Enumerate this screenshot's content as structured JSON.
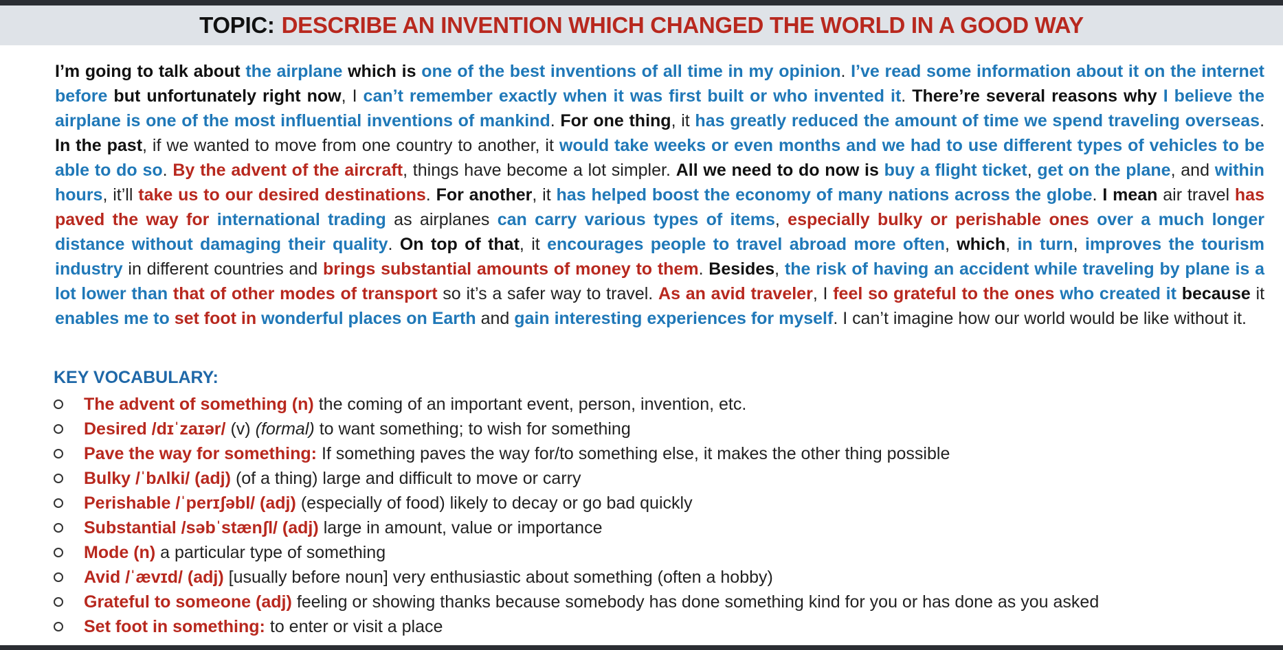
{
  "title": {
    "prefix": "TOPIC:",
    "text": "DESCRIBE AN INVENTION WHICH CHANGED THE WORLD IN A GOOD WAY"
  },
  "passage": [
    {
      "text": "I’m going to talk about ",
      "style": "b"
    },
    {
      "text": "the airplane",
      "style": "blue"
    },
    {
      "text": " which is ",
      "style": "b"
    },
    {
      "text": "one of the best inventions of all time in my opinion",
      "style": "blue"
    },
    {
      "text": ". ",
      "style": "n"
    },
    {
      "text": "I’ve read some information about it on the internet before",
      "style": "blue"
    },
    {
      "text": " but unfortunately right now",
      "style": "b"
    },
    {
      "text": ", I ",
      "style": "n"
    },
    {
      "text": "can’t remember exactly when it was first built or who invented it",
      "style": "blue"
    },
    {
      "text": ". ",
      "style": "n"
    },
    {
      "text": "There’re several reasons why",
      "style": "b"
    },
    {
      "text": " ",
      "style": "n"
    },
    {
      "text": "I believe the airplane is one of the most influential inventions of mankind",
      "style": "blue"
    },
    {
      "text": ". ",
      "style": "n"
    },
    {
      "text": "For one thing",
      "style": "b"
    },
    {
      "text": ", it ",
      "style": "n"
    },
    {
      "text": "has greatly reduced the amount of time we spend traveling overseas",
      "style": "blue"
    },
    {
      "text": ". ",
      "style": "n"
    },
    {
      "text": "In the past",
      "style": "b"
    },
    {
      "text": ", if we wanted to move from one country to another, it ",
      "style": "n"
    },
    {
      "text": "would take weeks or even months and we had to use different types of vehicles to be able to do so",
      "style": "blue"
    },
    {
      "text": ". ",
      "style": "n"
    },
    {
      "text": "By the advent of the aircraft",
      "style": "red"
    },
    {
      "text": ", things have become a lot simpler. ",
      "style": "n"
    },
    {
      "text": "All we need to do now is",
      "style": "b"
    },
    {
      "text": " ",
      "style": "n"
    },
    {
      "text": "buy a flight ticket",
      "style": "blue"
    },
    {
      "text": ", ",
      "style": "n"
    },
    {
      "text": "get on the plane",
      "style": "blue"
    },
    {
      "text": ", and ",
      "style": "n"
    },
    {
      "text": "within hours",
      "style": "blue"
    },
    {
      "text": ", it’ll ",
      "style": "n"
    },
    {
      "text": "take us to our desired destinations",
      "style": "red"
    },
    {
      "text": ". ",
      "style": "n"
    },
    {
      "text": "For another",
      "style": "b"
    },
    {
      "text": ", it ",
      "style": "n"
    },
    {
      "text": "has helped boost the economy of many nations across the globe",
      "style": "blue"
    },
    {
      "text": ". ",
      "style": "n"
    },
    {
      "text": "I mean",
      "style": "b"
    },
    {
      "text": " air travel ",
      "style": "n"
    },
    {
      "text": "has paved the way for",
      "style": "red"
    },
    {
      "text": " ",
      "style": "n"
    },
    {
      "text": "international trading",
      "style": "blue"
    },
    {
      "text": " as airplanes ",
      "style": "n"
    },
    {
      "text": "can carry various types of items",
      "style": "blue"
    },
    {
      "text": ", ",
      "style": "n"
    },
    {
      "text": "especially bulky or perishable ones",
      "style": "red"
    },
    {
      "text": " ",
      "style": "n"
    },
    {
      "text": "over a much longer distance without damaging their quality",
      "style": "blue"
    },
    {
      "text": ". ",
      "style": "n"
    },
    {
      "text": "On top of that",
      "style": "b"
    },
    {
      "text": ", it ",
      "style": "n"
    },
    {
      "text": "encourages people to travel abroad more often",
      "style": "blue"
    },
    {
      "text": ", ",
      "style": "n"
    },
    {
      "text": "which",
      "style": "b"
    },
    {
      "text": ", ",
      "style": "n"
    },
    {
      "text": "in turn",
      "style": "blue"
    },
    {
      "text": ", ",
      "style": "n"
    },
    {
      "text": "improves the tourism industry",
      "style": "blue"
    },
    {
      "text": " in different countries and ",
      "style": "n"
    },
    {
      "text": "brings substantial amounts of money to them",
      "style": "red"
    },
    {
      "text": ". ",
      "style": "n"
    },
    {
      "text": "Besides",
      "style": "b"
    },
    {
      "text": ", ",
      "style": "n"
    },
    {
      "text": "the risk of having an accident while traveling by plane is a lot lower than",
      "style": "blue"
    },
    {
      "text": " ",
      "style": "n"
    },
    {
      "text": "that of other modes of transport",
      "style": "red"
    },
    {
      "text": " so it’s a safer way to travel. ",
      "style": "n"
    },
    {
      "text": "As an avid traveler",
      "style": "red"
    },
    {
      "text": ", I ",
      "style": "n"
    },
    {
      "text": "feel so grateful to the ones",
      "style": "red"
    },
    {
      "text": " ",
      "style": "n"
    },
    {
      "text": "who created it",
      "style": "blue"
    },
    {
      "text": " ",
      "style": "n"
    },
    {
      "text": "because",
      "style": "b"
    },
    {
      "text": " it ",
      "style": "n"
    },
    {
      "text": "enables me to",
      "style": "blue"
    },
    {
      "text": " ",
      "style": "n"
    },
    {
      "text": "set foot in",
      "style": "red"
    },
    {
      "text": " ",
      "style": "n"
    },
    {
      "text": "wonderful places on Earth",
      "style": "blue"
    },
    {
      "text": " and ",
      "style": "n"
    },
    {
      "text": "gain interesting experiences for myself",
      "style": "blue"
    },
    {
      "text": ". I can’t imagine how our world would be like without it.",
      "style": "n"
    }
  ],
  "vocabulary": {
    "heading": "KEY VOCABULARY:",
    "items": [
      {
        "term": "The advent of something (n)",
        "pron": "",
        "pos": "",
        "note": "",
        "def": "the coming of an important event, person, invention, etc."
      },
      {
        "term": "Desired /dɪˈzaɪər/",
        "pron": "",
        "pos": "(v)",
        "note": "(formal)",
        "def": "to want something; to wish for something"
      },
      {
        "term": "Pave the way for something:",
        "pron": "",
        "pos": "",
        "note": "",
        "def": "If something paves the way for/to something else, it makes the other thing possible"
      },
      {
        "term": "Bulky /ˈbʌlki/ (adj)",
        "pron": "",
        "pos": "",
        "note": "",
        "def": "(of a thing) large and difficult to move or carry"
      },
      {
        "term": "Perishable /ˈperɪʃəbl/ (adj)",
        "pron": "",
        "pos": "",
        "note": "",
        "def": "(especially of food) likely to decay or go bad quickly"
      },
      {
        "term": "Substantial /səbˈstænʃl/ (adj)",
        "pron": "",
        "pos": "",
        "note": "",
        "def": "large in amount, value or importance"
      },
      {
        "term": "Mode (n)",
        "pron": "",
        "pos": "",
        "note": "",
        "def": "a particular type of something"
      },
      {
        "term": "Avid /ˈævɪd/ (adj)",
        "pron": "",
        "pos": "",
        "note": "",
        "def": "[usually before noun] very enthusiastic about something (often a hobby)"
      },
      {
        "term": "Grateful to someone (adj)",
        "pron": "",
        "pos": "",
        "note": "",
        "def": "feeling or showing thanks because somebody has done something kind for you or has done as you asked"
      },
      {
        "term": "Set foot in something:",
        "pron": "",
        "pos": "",
        "note": "",
        "def": "to enter or visit a place"
      }
    ]
  },
  "colors": {
    "highlight_blue": "#1f78b8",
    "highlight_red": "#b8281e",
    "title_bar_bg": "#dfe3e8"
  }
}
